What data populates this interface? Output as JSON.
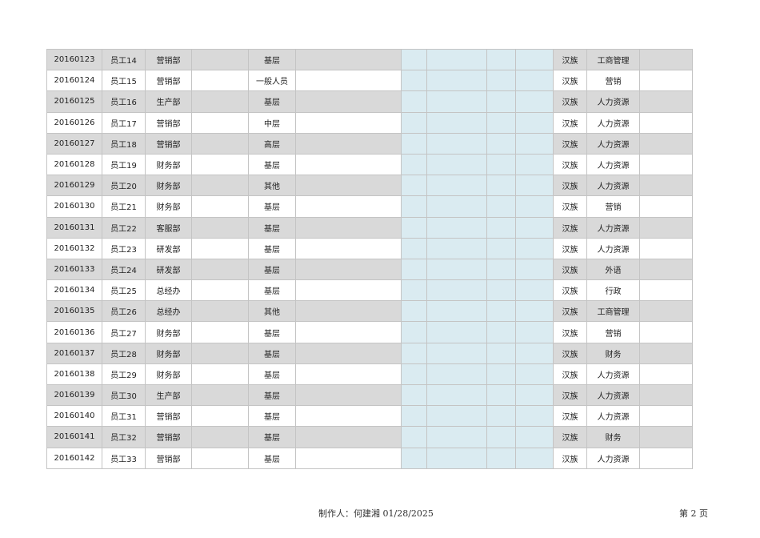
{
  "rows": [
    [
      "20160123",
      "员工14",
      "营销部",
      "基层",
      "汉族",
      "工商管理"
    ],
    [
      "20160124",
      "员工15",
      "营销部",
      "一般人员",
      "汉族",
      "营销"
    ],
    [
      "20160125",
      "员工16",
      "生产部",
      "基层",
      "汉族",
      "人力资源"
    ],
    [
      "20160126",
      "员工17",
      "营销部",
      "中层",
      "汉族",
      "人力资源"
    ],
    [
      "20160127",
      "员工18",
      "营销部",
      "高层",
      "汉族",
      "人力资源"
    ],
    [
      "20160128",
      "员工19",
      "财务部",
      "基层",
      "汉族",
      "人力资源"
    ],
    [
      "20160129",
      "员工20",
      "财务部",
      "其他",
      "汉族",
      "人力资源"
    ],
    [
      "20160130",
      "员工21",
      "财务部",
      "基层",
      "汉族",
      "营销"
    ],
    [
      "20160131",
      "员工22",
      "客服部",
      "基层",
      "汉族",
      "人力资源"
    ],
    [
      "20160132",
      "员工23",
      "研发部",
      "基层",
      "汉族",
      "人力资源"
    ],
    [
      "20160133",
      "员工24",
      "研发部",
      "基层",
      "汉族",
      "外语"
    ],
    [
      "20160134",
      "员工25",
      "总经办",
      "基层",
      "汉族",
      "行政"
    ],
    [
      "20160135",
      "员工26",
      "总经办",
      "其他",
      "汉族",
      "工商管理"
    ],
    [
      "20160136",
      "员工27",
      "财务部",
      "基层",
      "汉族",
      "营销"
    ],
    [
      "20160137",
      "员工28",
      "财务部",
      "基层",
      "汉族",
      "财务"
    ],
    [
      "20160138",
      "员工29",
      "财务部",
      "基层",
      "汉族",
      "人力资源"
    ],
    [
      "20160139",
      "员工30",
      "生产部",
      "基层",
      "汉族",
      "人力资源"
    ],
    [
      "20160140",
      "员工31",
      "营销部",
      "基层",
      "汉族",
      "人力资源"
    ],
    [
      "20160141",
      "员工32",
      "营销部",
      "基层",
      "汉族",
      "财务"
    ],
    [
      "20160142",
      "员工33",
      "营销部",
      "基层",
      "汉族",
      "人力资源"
    ]
  ],
  "colors": {
    "stripe": "#d9d9d9",
    "highlight_columns": "#daebf1",
    "border": "#c4c4c4"
  },
  "footer": {
    "author": "制作人：何建湘 01/28/2025",
    "page": "第 2 页"
  }
}
